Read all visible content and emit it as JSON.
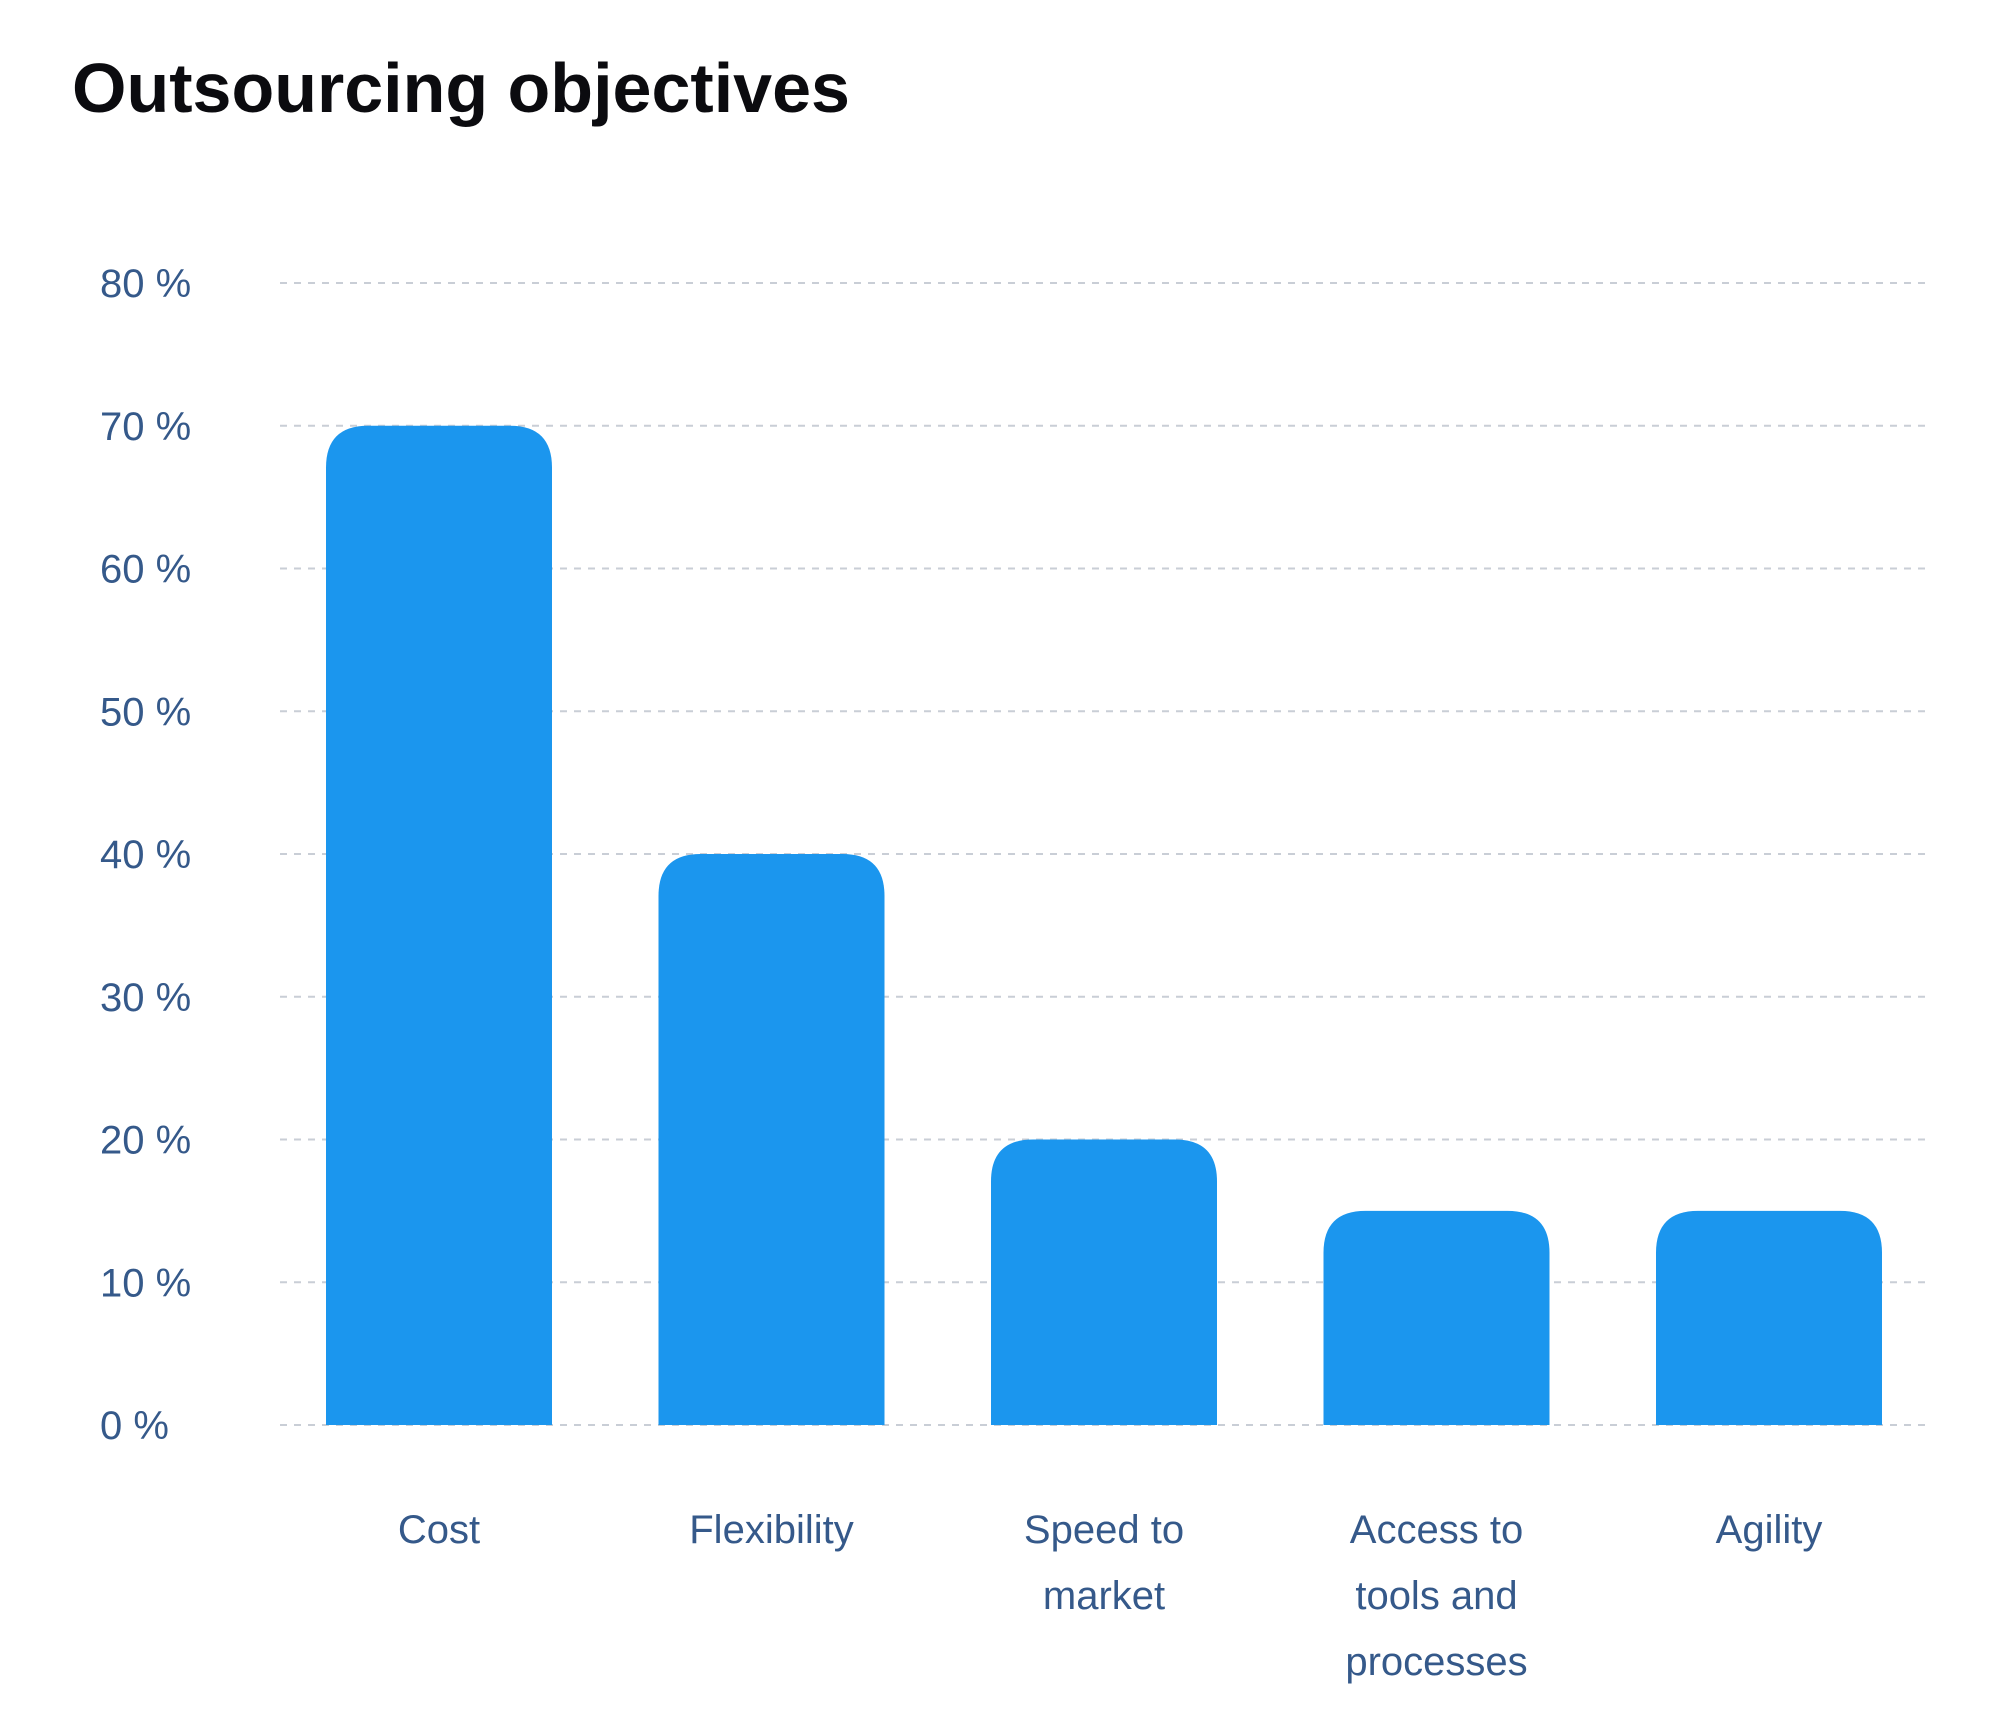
{
  "colors": {
    "bar": "#1b96ee",
    "axis_text": "#35598a",
    "title": "#0b0b0f",
    "grid": "#c9ced6"
  },
  "chart_data": {
    "type": "bar",
    "title": "Outsourcing objectives",
    "xlabel": "",
    "ylabel": "",
    "categories": [
      [
        "Cost"
      ],
      [
        "Flexibility"
      ],
      [
        "Speed to",
        "market"
      ],
      [
        "Access to",
        "tools and",
        "processes"
      ],
      [
        "Agility"
      ]
    ],
    "values": [
      70,
      40,
      20,
      15,
      15
    ],
    "ylim": [
      0,
      80
    ],
    "yticks": [
      0,
      10,
      20,
      30,
      40,
      50,
      60,
      70,
      80
    ],
    "ytick_labels": [
      "0 %",
      "10 %",
      "20 %",
      "30 %",
      "40 %",
      "50 %",
      "60 %",
      "70 %",
      "80 %"
    ],
    "grid": true,
    "legend": "none"
  }
}
